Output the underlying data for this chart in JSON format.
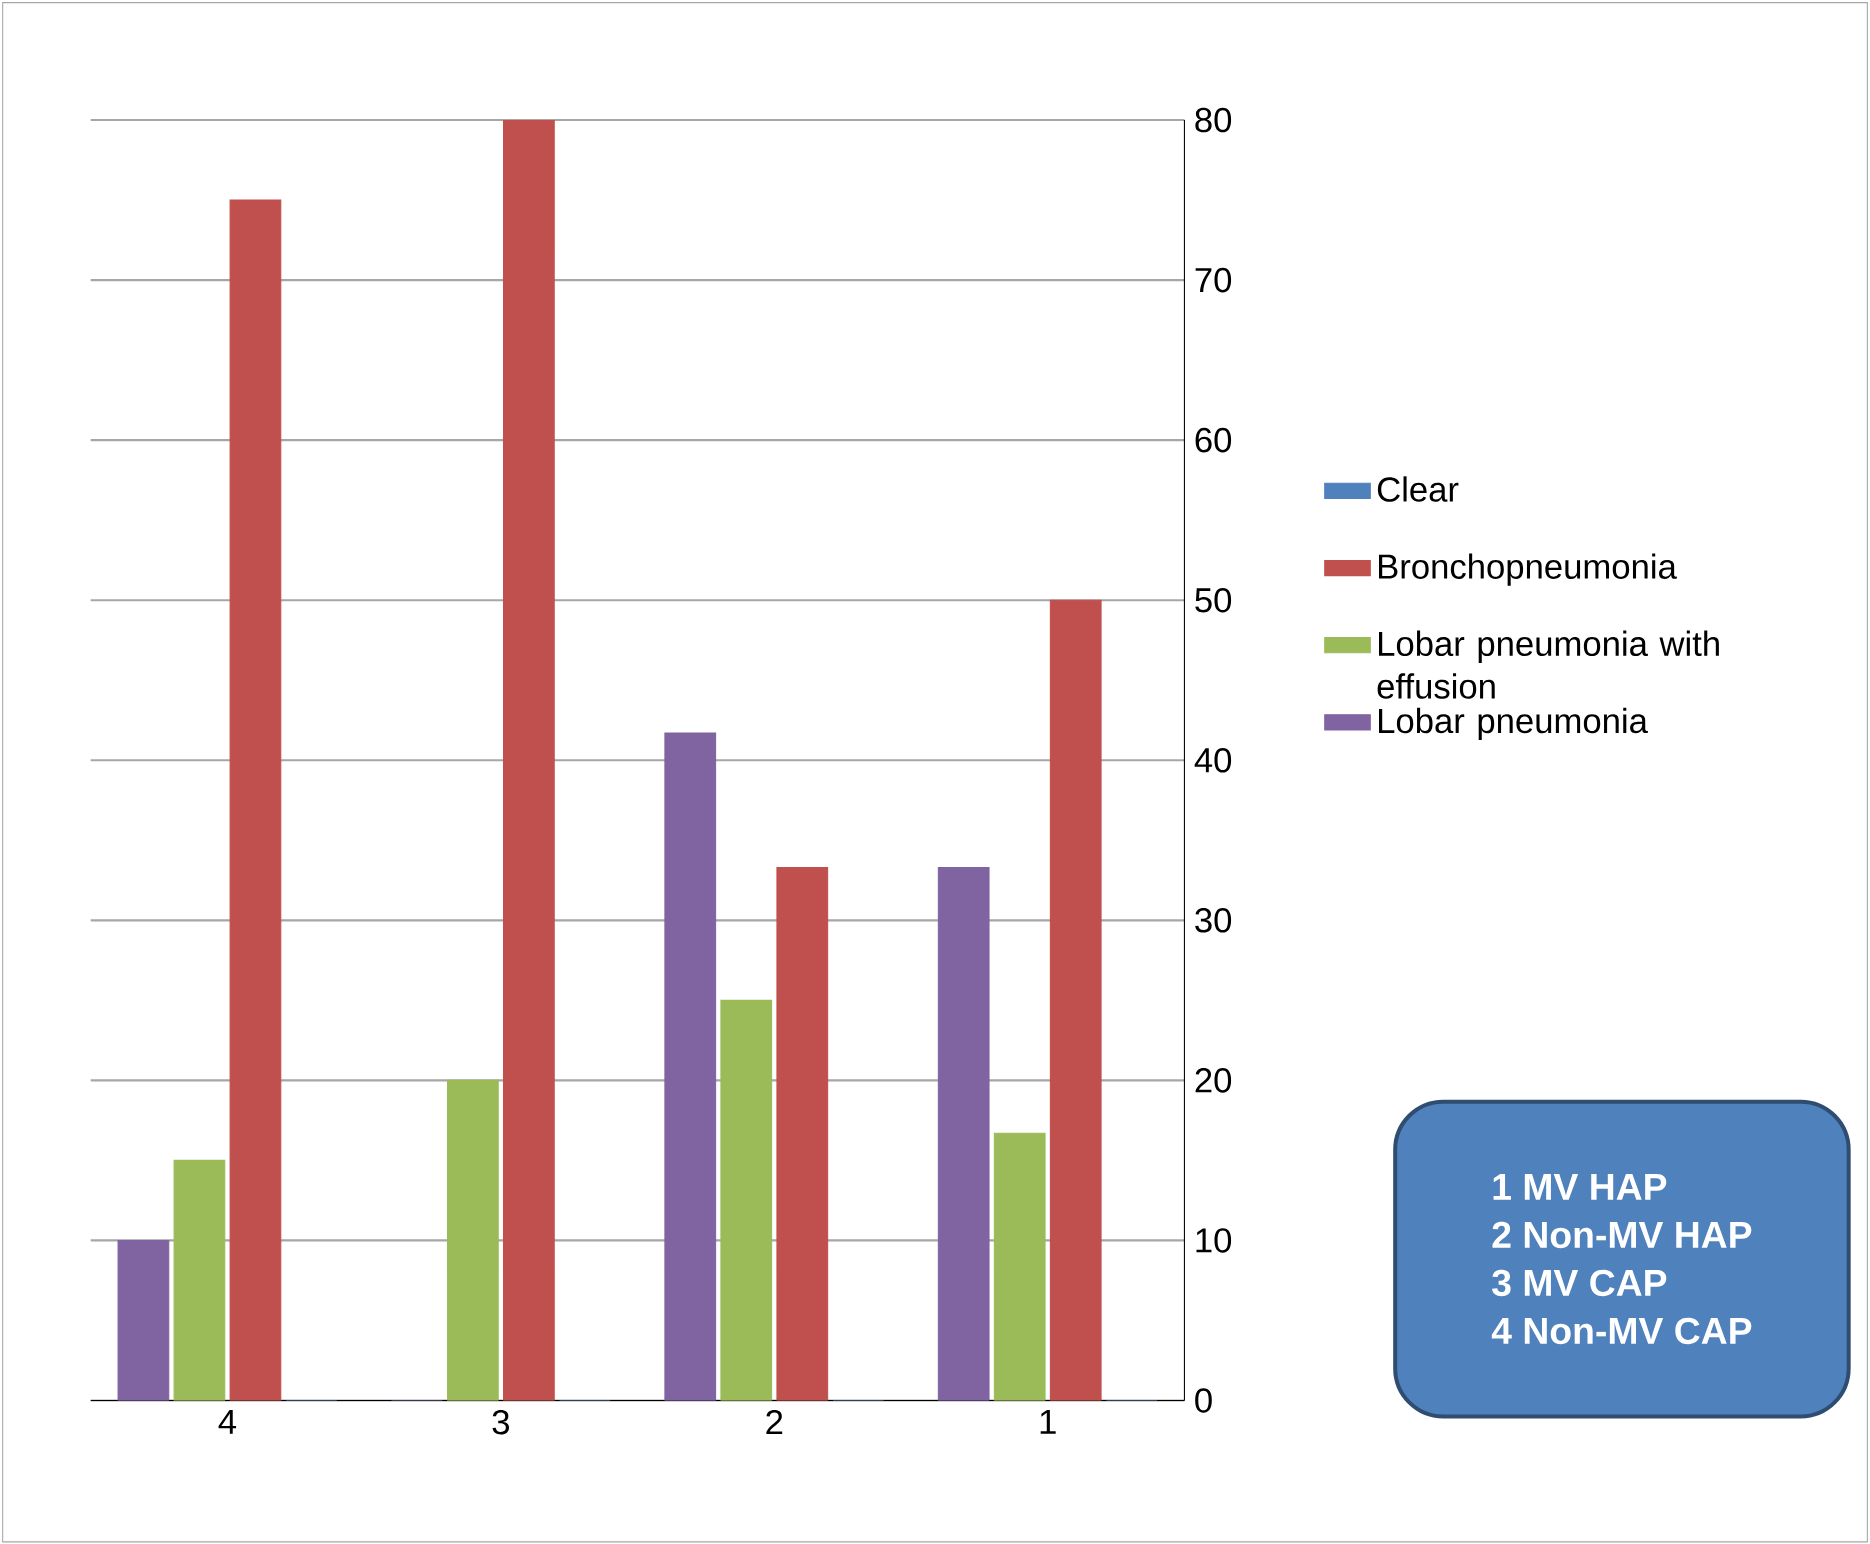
{
  "chart_data": {
    "type": "bar",
    "categories": [
      "4",
      "3",
      "2",
      "1"
    ],
    "series": [
      {
        "name": "Lobar pneumonia",
        "color": "#8064a2",
        "values": [
          10,
          0,
          41.7,
          33.3
        ]
      },
      {
        "name": "Lobar pneumonia with effusion",
        "color": "#9bbb59",
        "values": [
          15,
          20,
          25,
          16.7
        ]
      },
      {
        "name": "Bronchopneumonia",
        "color": "#c0504d",
        "values": [
          75,
          80,
          33.3,
          50
        ]
      },
      {
        "name": "Clear",
        "color": "#4f81bd",
        "values": [
          0,
          0,
          0,
          0
        ]
      }
    ],
    "ylim": [
      0,
      80
    ],
    "yticks": [
      0,
      10,
      20,
      30,
      40,
      50,
      60,
      70,
      80
    ],
    "grid": "y",
    "legend": "right",
    "annotations": [
      "1  MV HAP",
      "2  Non-MV HAP",
      "3  MV CAP",
      "4 Non-MV CAP"
    ]
  }
}
